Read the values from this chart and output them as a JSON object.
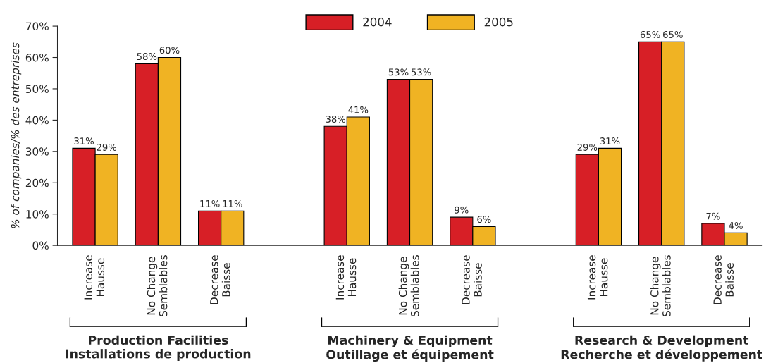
{
  "chart_data": {
    "type": "bar",
    "ylabel": "% of companies/% des entreprises",
    "categories": [
      "Increase\nHausse",
      "No Change\nSemblables",
      "Decrease\nBaisse",
      null,
      "Increase\nHausse",
      "No Change\nSemblables",
      "Decrease\nBaisse",
      null,
      "Increase\nHausse",
      "No Change\nSemblables",
      "Decrease\nBaisse"
    ],
    "series": [
      {
        "name": "2004",
        "color": "#d71f26",
        "values": [
          31,
          58,
          11,
          null,
          38,
          53,
          9,
          null,
          29,
          65,
          7
        ],
        "value_labels": [
          "31%",
          "58%",
          "11%",
          null,
          "38%",
          "53%",
          "9%",
          null,
          "29%",
          "65%",
          "7%"
        ]
      },
      {
        "name": "2005",
        "color": "#f0b323",
        "values": [
          29,
          60,
          11,
          null,
          41,
          53,
          6,
          null,
          31,
          65,
          4
        ],
        "value_labels": [
          "29%",
          "60%",
          "11%",
          null,
          "41%",
          "53%",
          "6%",
          null,
          "31%",
          "65%",
          "4%"
        ]
      }
    ],
    "ylim": [
      0,
      70
    ],
    "yticks": [
      {
        "value": 0,
        "label": "0%"
      },
      {
        "value": 10,
        "label": "10%"
      },
      {
        "value": 20,
        "label": "20%"
      },
      {
        "value": 30,
        "label": "30%"
      },
      {
        "value": 40,
        "label": "40%"
      },
      {
        "value": 50,
        "label": "50%"
      },
      {
        "value": 60,
        "label": "60%"
      },
      {
        "value": 70,
        "label": "70%"
      }
    ],
    "annotations": [
      "Production Facilities\nInstallations de production",
      "Machinery & Equipment\nOutillage et équipement",
      "Research & Development\nRecherche et développement"
    ],
    "grid": false,
    "legend": "top"
  }
}
